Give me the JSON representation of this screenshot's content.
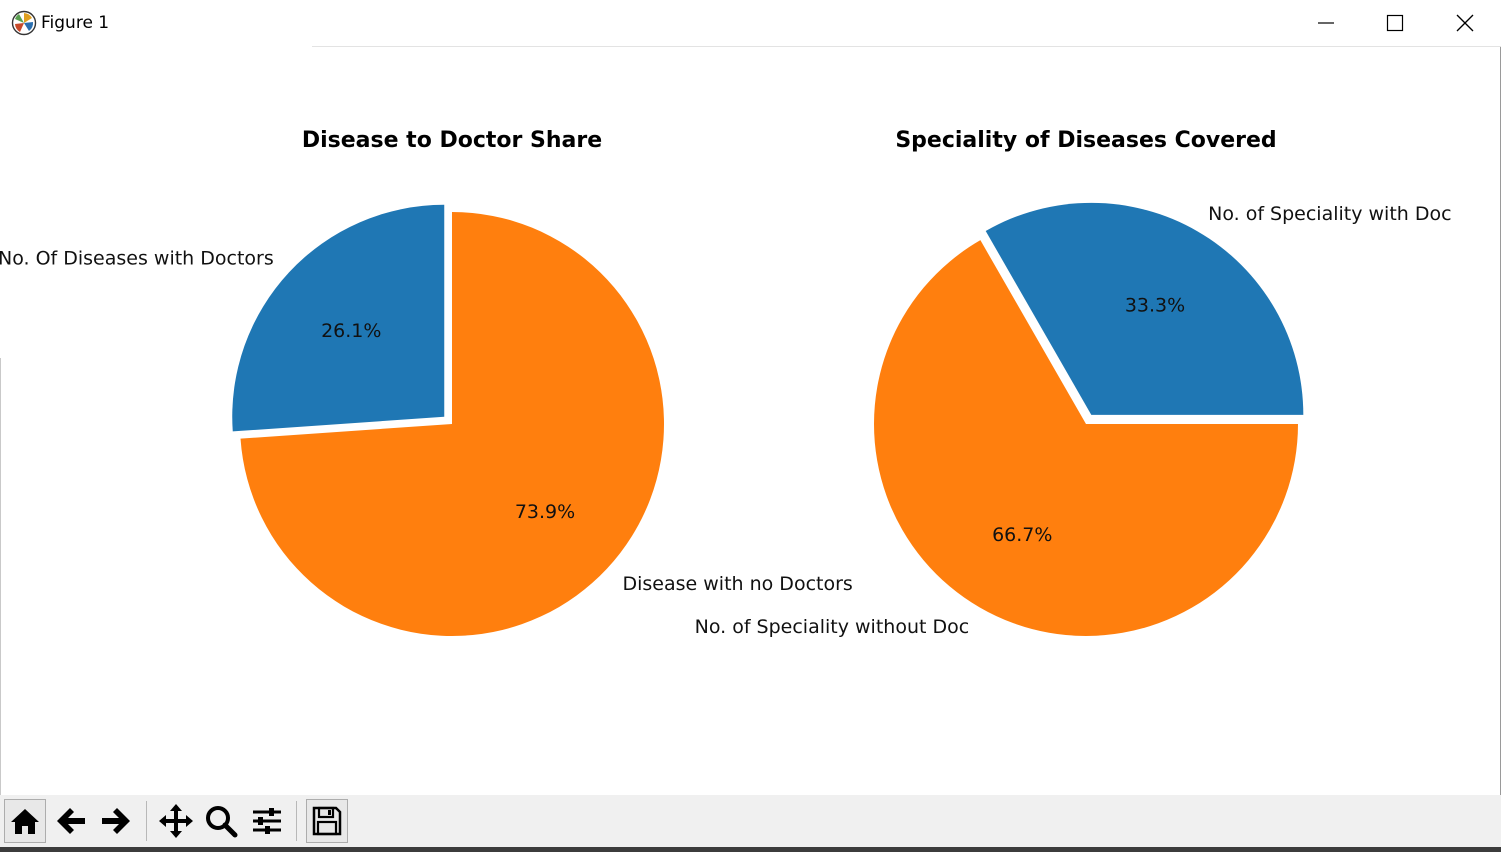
{
  "window": {
    "title": "Figure 1",
    "icons": {
      "app": "matplotlib-logo-icon",
      "minimize": "minimize-icon",
      "maximize": "maximize-icon",
      "close": "close-icon"
    }
  },
  "toolbar": {
    "buttons": [
      {
        "name": "home",
        "icon": "home-icon"
      },
      {
        "name": "back",
        "icon": "arrow-left-icon"
      },
      {
        "name": "forward",
        "icon": "arrow-right-icon"
      },
      {
        "name": "pan",
        "icon": "move-icon"
      },
      {
        "name": "zoom",
        "icon": "magnifier-icon"
      },
      {
        "name": "configure-subplots",
        "icon": "sliders-icon"
      },
      {
        "name": "save",
        "icon": "floppy-disk-icon"
      }
    ]
  },
  "colors": {
    "blue": "#1f77b4",
    "orange": "#ff7f0e"
  },
  "chart_data": [
    {
      "type": "pie",
      "title": "Disease to Doctor Share",
      "labels": [
        "No. Of Diseases with Doctors",
        "Disease with no Doctors"
      ],
      "values": [
        26.1,
        73.9
      ],
      "pct_labels": [
        "26.1%",
        "73.9%"
      ],
      "colors": [
        "#1f77b4",
        "#ff7f0e"
      ],
      "explode": [
        0.05,
        0
      ],
      "startangle": 90
    },
    {
      "type": "pie",
      "title": "Speciality of Diseases Covered",
      "labels": [
        "No. of Speciality with Doc",
        "No. of Speciality without Doc"
      ],
      "values": [
        33.3,
        66.7
      ],
      "pct_labels": [
        "33.3%",
        "66.7%"
      ],
      "colors": [
        "#1f77b4",
        "#ff7f0e"
      ],
      "explode": [
        0.05,
        0
      ],
      "startangle": 0
    }
  ]
}
